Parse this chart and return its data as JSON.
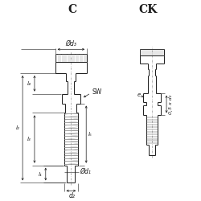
{
  "bg_color": "#ffffff",
  "line_color": "#1a1a1a",
  "title_C": "C",
  "title_CK": "CK",
  "label_d3": "Ød₃",
  "label_d1": "Ød₁",
  "label_d2": "d₂",
  "label_SW": "SW",
  "label_l2": "l₂",
  "label_l4": "l₄",
  "label_l3": "l₃",
  "label_l1": "l₁",
  "label_l5": "l₅",
  "label_e": "e",
  "label_05d2": "0,5 x d₂"
}
